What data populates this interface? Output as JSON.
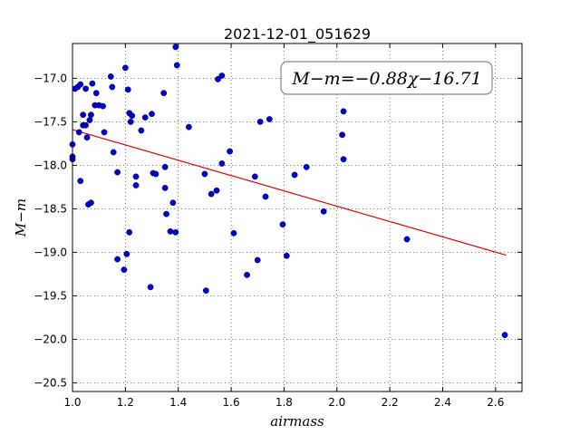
{
  "chart_data": {
    "type": "scatter",
    "title": "2021-12-01_051629",
    "xlabel": "airmass",
    "ylabel": "M−m",
    "xlim": [
      1.0,
      2.7
    ],
    "ylim": [
      -20.6,
      -16.6
    ],
    "xticks": [
      1.0,
      1.2,
      1.4,
      1.6,
      1.8,
      2.0,
      2.2,
      2.4,
      2.6
    ],
    "yticks": [
      -20.5,
      -20.0,
      -19.5,
      -19.0,
      -18.5,
      -18.0,
      -17.5,
      -17.0
    ],
    "xtick_labels": [
      "1.0",
      "1.2",
      "1.4",
      "1.6",
      "1.8",
      "2.0",
      "2.2",
      "2.4",
      "2.6"
    ],
    "ytick_labels": [
      "−20.5",
      "−20.0",
      "−19.5",
      "−19.0",
      "−18.5",
      "−18.0",
      "−17.5",
      "−17.0"
    ],
    "grid": true,
    "annotation": "M−m=−0.88χ−16.71",
    "fit": {
      "slope": -0.88,
      "intercept": -16.71,
      "x_range": [
        1.0,
        2.64
      ],
      "color": "#e00000"
    },
    "marker_color": "#0000cc",
    "points": [
      [
        1.0,
        -17.76
      ],
      [
        1.0,
        -17.9
      ],
      [
        1.0,
        -17.93
      ],
      [
        1.01,
        -17.12
      ],
      [
        1.02,
        -17.1
      ],
      [
        1.025,
        -17.62
      ],
      [
        1.03,
        -17.07
      ],
      [
        1.03,
        -18.18
      ],
      [
        1.04,
        -17.54
      ],
      [
        1.04,
        -17.42
      ],
      [
        1.05,
        -17.54
      ],
      [
        1.05,
        -17.12
      ],
      [
        1.055,
        -17.68
      ],
      [
        1.06,
        -18.45
      ],
      [
        1.065,
        -17.48
      ],
      [
        1.07,
        -18.43
      ],
      [
        1.07,
        -17.42
      ],
      [
        1.075,
        -17.06
      ],
      [
        1.085,
        -17.31
      ],
      [
        1.09,
        -17.17
      ],
      [
        1.1,
        -17.31
      ],
      [
        1.115,
        -17.32
      ],
      [
        1.12,
        -17.62
      ],
      [
        1.145,
        -16.98
      ],
      [
        1.15,
        -17.1
      ],
      [
        1.155,
        -17.85
      ],
      [
        1.17,
        -19.08
      ],
      [
        1.17,
        -18.08
      ],
      [
        1.195,
        -19.2
      ],
      [
        1.2,
        -16.88
      ],
      [
        1.205,
        -19.02
      ],
      [
        1.21,
        -17.13
      ],
      [
        1.215,
        -17.4
      ],
      [
        1.215,
        -18.77
      ],
      [
        1.22,
        -17.5
      ],
      [
        1.225,
        -17.43
      ],
      [
        1.24,
        -18.13
      ],
      [
        1.24,
        -18.23
      ],
      [
        1.26,
        -17.6
      ],
      [
        1.275,
        -17.45
      ],
      [
        1.295,
        -19.4
      ],
      [
        1.3,
        -17.41
      ],
      [
        1.305,
        -18.09
      ],
      [
        1.315,
        -18.1
      ],
      [
        1.345,
        -17.17
      ],
      [
        1.35,
        -18.02
      ],
      [
        1.35,
        -18.26
      ],
      [
        1.355,
        -18.56
      ],
      [
        1.37,
        -18.76
      ],
      [
        1.38,
        -18.43
      ],
      [
        1.39,
        -16.64
      ],
      [
        1.39,
        -18.77
      ],
      [
        1.395,
        -16.85
      ],
      [
        1.44,
        -17.56
      ],
      [
        1.5,
        -18.1
      ],
      [
        1.505,
        -19.44
      ],
      [
        1.525,
        -18.33
      ],
      [
        1.545,
        -18.29
      ],
      [
        1.55,
        -17.01
      ],
      [
        1.565,
        -16.97
      ],
      [
        1.565,
        -17.98
      ],
      [
        1.595,
        -17.84
      ],
      [
        1.61,
        -18.78
      ],
      [
        1.66,
        -19.26
      ],
      [
        1.69,
        -18.13
      ],
      [
        1.7,
        -19.09
      ],
      [
        1.71,
        -17.5
      ],
      [
        1.73,
        -18.36
      ],
      [
        1.745,
        -17.47
      ],
      [
        1.795,
        -18.68
      ],
      [
        1.81,
        -19.04
      ],
      [
        1.84,
        -18.11
      ],
      [
        1.885,
        -18.02
      ],
      [
        1.95,
        -18.53
      ],
      [
        2.02,
        -17.65
      ],
      [
        2.025,
        -17.38
      ],
      [
        2.025,
        -17.93
      ],
      [
        2.265,
        -18.85
      ],
      [
        2.635,
        -19.95
      ]
    ]
  }
}
